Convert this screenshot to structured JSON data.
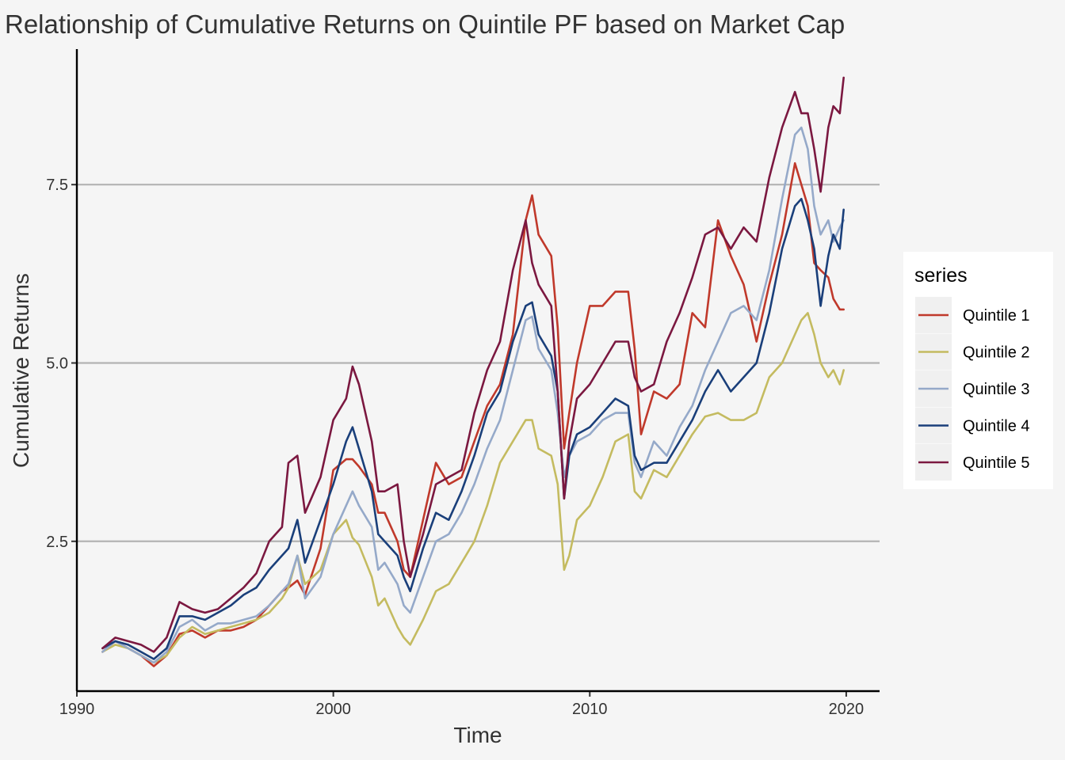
{
  "chart_data": {
    "type": "line",
    "title": "Relationship of Cumulative Returns on Quintile PF based on Market Cap",
    "xlabel": "Time",
    "ylabel": "Cumulative Returns",
    "xlim": [
      1990,
      2021.3
    ],
    "ylim": [
      0.4,
      9.4
    ],
    "x_ticks": [
      1990,
      2000,
      2010,
      2020
    ],
    "x_tick_labels": [
      "1990",
      "2000",
      "2010",
      "2020"
    ],
    "y_ticks": [
      2.5,
      5.0,
      7.5
    ],
    "y_tick_labels": [
      "2.5",
      "5.0",
      "7.5"
    ],
    "grid": "horizontal major lines",
    "legend": {
      "title": "series",
      "position": "right"
    },
    "x": [
      1991.0,
      1991.5,
      1992.0,
      1992.5,
      1993.0,
      1993.5,
      1994.0,
      1994.5,
      1995.0,
      1995.5,
      1996.0,
      1996.5,
      1997.0,
      1997.5,
      1998.0,
      1998.25,
      1998.6,
      1998.9,
      1999.5,
      2000.0,
      2000.5,
      2000.75,
      2001.0,
      2001.5,
      2001.75,
      2002.0,
      2002.5,
      2002.75,
      2003.0,
      2003.5,
      2004.0,
      2004.5,
      2005.0,
      2005.5,
      2006.0,
      2006.5,
      2007.0,
      2007.5,
      2007.75,
      2008.0,
      2008.5,
      2008.75,
      2009.0,
      2009.2,
      2009.5,
      2010.0,
      2010.5,
      2011.0,
      2011.5,
      2011.75,
      2012.0,
      2012.5,
      2013.0,
      2013.5,
      2014.0,
      2014.5,
      2015.0,
      2015.5,
      2016.0,
      2016.5,
      2017.0,
      2017.5,
      2018.0,
      2018.25,
      2018.5,
      2018.75,
      2019.0,
      2019.3,
      2019.5,
      2019.75,
      2019.9
    ],
    "series": [
      {
        "name": "Quintile 1",
        "color": "#c0392b",
        "values": [
          0.95,
          1.1,
          1.0,
          0.9,
          0.75,
          0.9,
          1.2,
          1.25,
          1.15,
          1.25,
          1.25,
          1.3,
          1.4,
          1.6,
          1.8,
          1.85,
          1.95,
          1.75,
          2.4,
          3.5,
          3.65,
          3.65,
          3.55,
          3.3,
          2.9,
          2.9,
          2.5,
          2.1,
          2.0,
          2.8,
          3.6,
          3.3,
          3.4,
          3.9,
          4.4,
          4.7,
          5.4,
          7.0,
          7.35,
          6.8,
          6.5,
          5.5,
          3.8,
          4.3,
          5.0,
          5.8,
          5.8,
          6.0,
          6.0,
          5.2,
          4.0,
          4.6,
          4.5,
          4.7,
          5.7,
          5.5,
          7.0,
          6.5,
          6.1,
          5.3,
          6.1,
          6.8,
          7.8,
          7.5,
          7.2,
          6.4,
          6.3,
          6.2,
          5.9,
          5.75,
          5.75
        ]
      },
      {
        "name": "Quintile 2",
        "color": "#c4bb60",
        "values": [
          0.95,
          1.05,
          1.0,
          0.9,
          0.8,
          0.9,
          1.15,
          1.3,
          1.2,
          1.25,
          1.3,
          1.35,
          1.4,
          1.5,
          1.7,
          1.85,
          2.3,
          1.9,
          2.1,
          2.6,
          2.8,
          2.55,
          2.45,
          2.0,
          1.6,
          1.7,
          1.3,
          1.15,
          1.05,
          1.4,
          1.8,
          1.9,
          2.2,
          2.5,
          3.0,
          3.6,
          3.9,
          4.2,
          4.2,
          3.8,
          3.7,
          3.3,
          2.1,
          2.3,
          2.8,
          3.0,
          3.4,
          3.9,
          4.0,
          3.2,
          3.1,
          3.5,
          3.4,
          3.7,
          4.0,
          4.25,
          4.3,
          4.2,
          4.2,
          4.3,
          4.8,
          5.0,
          5.4,
          5.6,
          5.7,
          5.4,
          5.0,
          4.8,
          4.9,
          4.7,
          4.9
        ]
      },
      {
        "name": "Quintile 3",
        "color": "#95a9c9",
        "values": [
          0.95,
          1.1,
          1.0,
          0.9,
          0.8,
          0.95,
          1.3,
          1.4,
          1.25,
          1.35,
          1.35,
          1.4,
          1.45,
          1.6,
          1.8,
          1.9,
          2.3,
          1.7,
          2.0,
          2.6,
          3.0,
          3.2,
          3.0,
          2.7,
          2.1,
          2.2,
          1.9,
          1.6,
          1.5,
          2.0,
          2.5,
          2.6,
          2.9,
          3.3,
          3.8,
          4.2,
          4.9,
          5.6,
          5.65,
          5.2,
          4.9,
          4.3,
          3.4,
          3.7,
          3.9,
          4.0,
          4.2,
          4.3,
          4.3,
          3.6,
          3.4,
          3.9,
          3.7,
          4.1,
          4.4,
          4.9,
          5.3,
          5.7,
          5.8,
          5.6,
          6.3,
          7.3,
          8.2,
          8.3,
          8.0,
          7.2,
          6.8,
          7.0,
          6.7,
          6.9,
          7.0
        ]
      },
      {
        "name": "Quintile 4",
        "color": "#1a3f7a",
        "values": [
          1.0,
          1.1,
          1.05,
          0.95,
          0.85,
          1.0,
          1.45,
          1.45,
          1.4,
          1.5,
          1.6,
          1.75,
          1.85,
          2.1,
          2.3,
          2.4,
          2.8,
          2.2,
          2.8,
          3.3,
          3.9,
          4.1,
          3.8,
          3.2,
          2.6,
          2.5,
          2.3,
          2.0,
          1.8,
          2.4,
          2.9,
          2.8,
          3.2,
          3.7,
          4.3,
          4.6,
          5.3,
          5.8,
          5.85,
          5.4,
          5.1,
          4.6,
          3.1,
          3.7,
          4.0,
          4.1,
          4.3,
          4.5,
          4.4,
          3.7,
          3.5,
          3.6,
          3.6,
          3.9,
          4.2,
          4.6,
          4.9,
          4.6,
          4.8,
          5.0,
          5.7,
          6.6,
          7.2,
          7.3,
          7.0,
          6.6,
          5.8,
          6.5,
          6.8,
          6.6,
          7.15
        ]
      },
      {
        "name": "Quintile 5",
        "color": "#7b1840",
        "values": [
          1.0,
          1.15,
          1.1,
          1.05,
          0.95,
          1.15,
          1.65,
          1.55,
          1.5,
          1.55,
          1.7,
          1.85,
          2.05,
          2.5,
          2.7,
          3.6,
          3.7,
          2.9,
          3.4,
          4.2,
          4.5,
          4.95,
          4.7,
          3.9,
          3.2,
          3.2,
          3.3,
          2.5,
          2.0,
          2.6,
          3.3,
          3.4,
          3.5,
          4.3,
          4.9,
          5.3,
          6.3,
          7.0,
          6.4,
          6.1,
          5.8,
          4.6,
          3.1,
          3.9,
          4.5,
          4.7,
          5.0,
          5.3,
          5.3,
          4.8,
          4.6,
          4.7,
          5.3,
          5.7,
          6.2,
          6.8,
          6.9,
          6.6,
          6.9,
          6.7,
          7.6,
          8.3,
          8.8,
          8.5,
          8.5,
          8.0,
          7.4,
          8.3,
          8.6,
          8.5,
          9.0
        ]
      }
    ]
  }
}
